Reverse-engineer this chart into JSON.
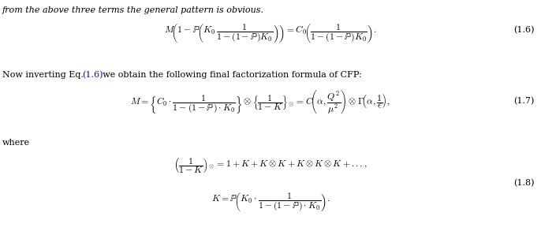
{
  "background_color": "#ffffff",
  "figsize": [
    6.86,
    2.98
  ],
  "dpi": 100,
  "text_color": "#000000",
  "link_color": "#1a0dab",
  "eq16_label": "(1.6)",
  "eq17_label": "(1.7)",
  "eq18_label": "(1.8)",
  "fs_body": 8.0,
  "fs_eq": 8.5,
  "fs_label": 8.0
}
